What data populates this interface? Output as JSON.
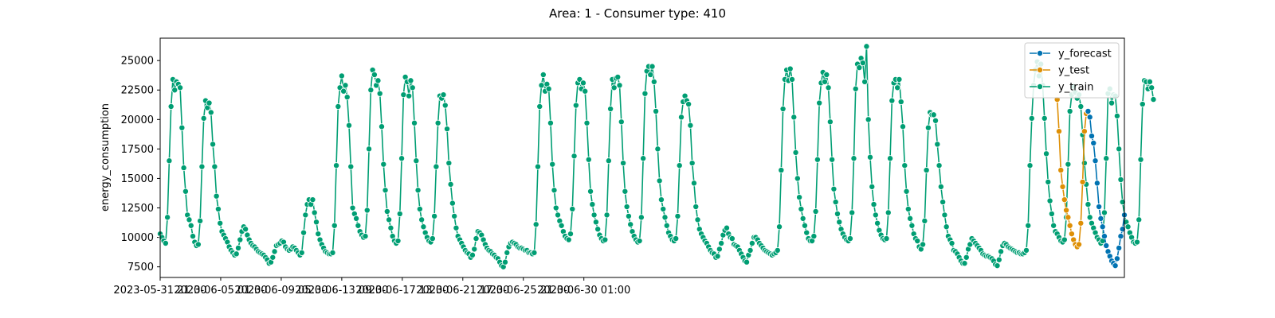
{
  "chart_data": {
    "type": "line",
    "title": "Area: 1 - Consumer type: 410",
    "xlabel": "",
    "ylabel": "energy_consumption",
    "x_start": "2023-05-31 21:00",
    "x_step_hours": 3,
    "x_ticks": [
      "2023-05-31 21:00",
      "2023-06-05 01:00",
      "2023-06-09 05:00",
      "2023-06-13 09:00",
      "2023-06-17 13:00",
      "2023-06-21 17:00",
      "2023-06-25 21:00",
      "2023-06-30 01:00"
    ],
    "y_ticks": [
      7500,
      10000,
      12500,
      15000,
      17500,
      20000,
      22500,
      25000
    ],
    "ylim": [
      6600,
      26900
    ],
    "grid": false,
    "legend_position": "top-right",
    "series": [
      {
        "name": "y_train",
        "color": "#009e73",
        "start_index": 0,
        "values": [
          10300,
          10000,
          9700,
          9500,
          11700,
          16500,
          21100,
          23400,
          22500,
          23200,
          23000,
          22700,
          19300,
          15900,
          13900,
          11900,
          11500,
          11000,
          10100,
          9600,
          9300,
          9400,
          11400,
          16000,
          20100,
          21600,
          21000,
          21400,
          20600,
          17900,
          16000,
          13500,
          12400,
          11200,
          10500,
          10200,
          9900,
          9600,
          9200,
          8900,
          8700,
          8500,
          8600,
          9100,
          9800,
          10500,
          10900,
          10700,
          10200,
          9800,
          9500,
          9300,
          9200,
          9000,
          8800,
          8700,
          8600,
          8500,
          8300,
          8100,
          7800,
          7900,
          8300,
          8800,
          9300,
          9400,
          9500,
          9700,
          9600,
          9200,
          9000,
          8900,
          9000,
          9200,
          9100,
          8900,
          8700,
          8500,
          8700,
          10400,
          11900,
          12800,
          13200,
          12800,
          13200,
          12100,
          11300,
          10300,
          9800,
          9400,
          9100,
          8800,
          8700,
          8600,
          8600,
          8700,
          11000,
          16100,
          21100,
          22700,
          23700,
          22400,
          22900,
          21900,
          19500,
          16000,
          12500,
          12000,
          11600,
          11000,
          10500,
          10200,
          10000,
          10100,
          12300,
          17500,
          22500,
          24200,
          23800,
          22900,
          23300,
          22200,
          19400,
          16200,
          14000,
          12200,
          11500,
          10800,
          10100,
          9700,
          9500,
          9700,
          12000,
          16700,
          22100,
          23600,
          23200,
          22000,
          23300,
          22700,
          19700,
          16500,
          14000,
          12400,
          11500,
          10900,
          10400,
          10000,
          9700,
          9600,
          9900,
          11800,
          16000,
          19700,
          22000,
          21800,
          22100,
          21200,
          19200,
          16300,
          14500,
          12900,
          11800,
          10800,
          10100,
          9800,
          9500,
          9200,
          8900,
          8700,
          8600,
          8300,
          8500,
          9000,
          9900,
          10500,
          10400,
          10200,
          9800,
          9400,
          9100,
          8900,
          8800,
          8600,
          8500,
          8300,
          8200,
          7900,
          7600,
          7500,
          7900,
          8700,
          9200,
          9500,
          9600,
          9500,
          9400,
          9200,
          9100,
          9100,
          9000,
          8900,
          8900,
          8700,
          8700,
          8600,
          8700,
          11100,
          16000,
          21100,
          22900,
          23800,
          22400,
          23000,
          22600,
          19700,
          16200,
          14000,
          12500,
          11900,
          11400,
          11000,
          10500,
          10100,
          9900,
          9800,
          10300,
          12400,
          16900,
          21200,
          23100,
          23400,
          22600,
          23100,
          22400,
          19700,
          16600,
          13900,
          12800,
          11900,
          11300,
          10700,
          10200,
          9900,
          9700,
          9800,
          11900,
          16500,
          20900,
          23400,
          22700,
          23500,
          23600,
          22900,
          19800,
          16300,
          13900,
          12600,
          11800,
          11100,
          10500,
          10100,
          9800,
          9600,
          9700,
          11700,
          16700,
          22200,
          24100,
          24500,
          23800,
          24500,
          23200,
          20700,
          17500,
          14800,
          13200,
          12400,
          11700,
          11000,
          10400,
          10100,
          9800,
          9700,
          9900,
          11800,
          16100,
          20200,
          21500,
          22000,
          21600,
          21300,
          19500,
          16300,
          14600,
          12600,
          11500,
          10700,
          10300,
          10000,
          9700,
          9500,
          9200,
          8900,
          8700,
          8600,
          8300,
          8400,
          9000,
          9500,
          10200,
          10600,
          10800,
          10300,
          10000,
          9900,
          9400,
          9300,
          9200,
          8900,
          8600,
          8300,
          8000,
          7900,
          8500,
          8900,
          9500,
          10000,
          10000,
          9800,
          9500,
          9300,
          9100,
          8900,
          8800,
          8700,
          8600,
          8500,
          8600,
          8700,
          8900,
          10900,
          15700,
          20900,
          23400,
          24200,
          23300,
          24300,
          23400,
          20200,
          17200,
          15000,
          13400,
          12400,
          11600,
          11000,
          10400,
          9900,
          9700,
          9700,
          10100,
          12200,
          16600,
          21400,
          23100,
          24000,
          23200,
          23800,
          22700,
          19800,
          16600,
          14100,
          13000,
          12000,
          11300,
          10700,
          10300,
          10000,
          9800,
          9700,
          9900,
          12100,
          16700,
          22600,
          24700,
          24400,
          25200,
          24800,
          23200,
          26200,
          20000,
          16800,
          14300,
          12800,
          11900,
          11200,
          10600,
          10200,
          9900,
          9800,
          9900,
          12100,
          16700,
          21600,
          23100,
          23400,
          22700,
          23400,
          21500,
          19400,
          16100,
          13900,
          12400,
          11600,
          11000,
          10300,
          9900,
          9700,
          9200,
          9000,
          9400,
          11400,
          15700,
          19300,
          20600,
          20400,
          20400,
          19900,
          17900,
          16100,
          14300,
          13000,
          11900,
          10900,
          10100,
          9800,
          9500,
          8900,
          8800,
          8600,
          8300,
          8000,
          7800,
          7800,
          8300,
          9000,
          9400,
          9900,
          9700,
          9500,
          9300,
          9100,
          8900,
          8600,
          8500,
          8400,
          8400,
          8300,
          8200,
          8000,
          7700,
          7600,
          8100,
          8800,
          9300,
          9500,
          9400,
          9200,
          9100,
          9000,
          8900,
          8800,
          8700,
          8700,
          8600,
          8600,
          8700,
          8900,
          11000,
          16100,
          20100,
          22900,
          24200,
          24900,
          23700,
          24700,
          22900,
          20100,
          17100,
          14700,
          13100,
          12000,
          11000,
          10500,
          10300,
          10000,
          9700,
          9600,
          9800,
          11700,
          16200,
          20700,
          22100,
          22800,
          22300,
          21800,
          22100,
          21100,
          18700,
          16300,
          14500,
          12800,
          11700,
          11200,
          10800,
          10400,
          10000,
          9800,
          9500,
          9700,
          12100,
          16700,
          22200,
          22600,
          21400,
          22100,
          22000,
          20300,
          17500,
          14900,
          13000,
          11900,
          11300,
          10900,
          10400,
          10000,
          9600,
          9500,
          9600,
          11500,
          16600,
          21300,
          23300,
          23200,
          22600,
          23200,
          22700,
          21700
        ]
      },
      {
        "name": "y_test",
        "color": "#de8f05",
        "start_index": 494,
        "values": [
          21700,
          19000,
          15700,
          14300,
          13200,
          12300,
          11700,
          11000,
          10300,
          9800,
          9400,
          9200,
          9400,
          11200,
          14700,
          19000,
          20500,
          20700
        ]
      },
      {
        "name": "y_forecast",
        "color": "#0173b2",
        "start_index": 511,
        "values": [
          20700,
          20200,
          18600,
          18000,
          16500,
          14600,
          12600,
          11600,
          10900,
          10100,
          9300,
          8800,
          8400,
          8000,
          7800,
          7600,
          8200,
          9100,
          10100,
          10700,
          11900
        ]
      }
    ]
  }
}
